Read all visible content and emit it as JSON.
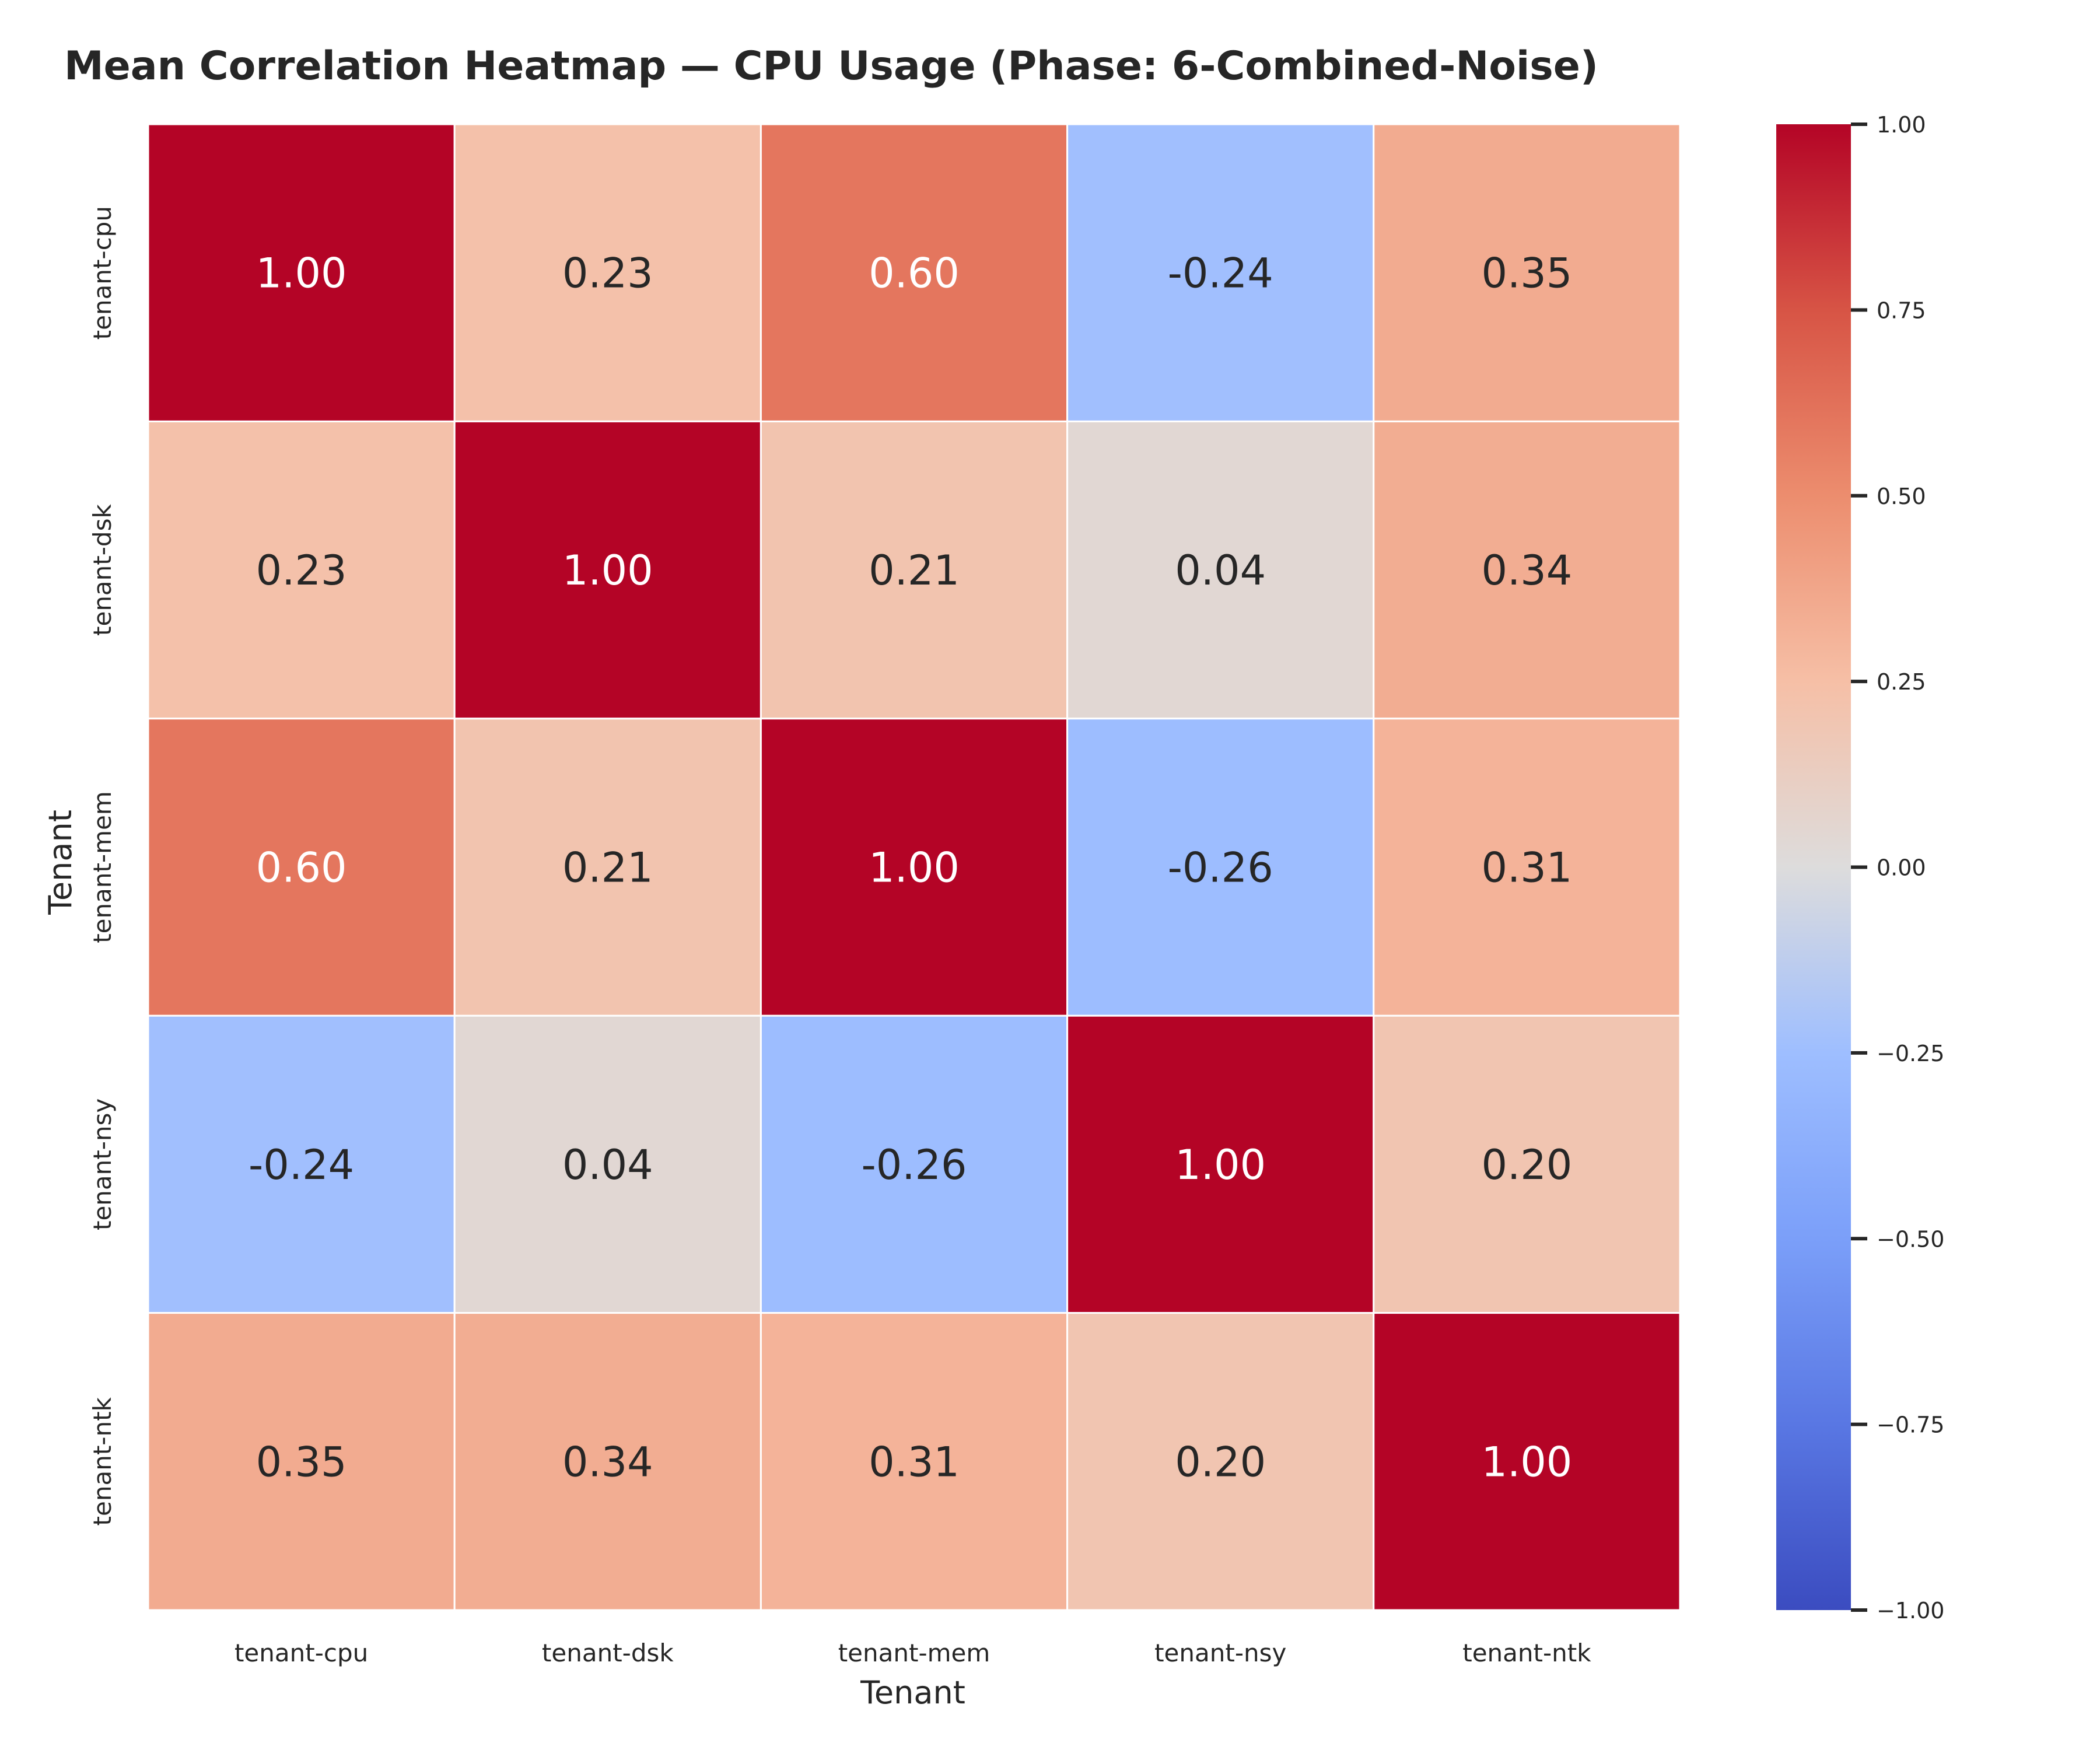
{
  "chart_data": {
    "type": "heatmap",
    "title": "Mean Correlation Heatmap — CPU Usage (Phase: 6-Combined-Noise)",
    "xlabel": "Tenant",
    "ylabel": "Tenant",
    "x_categories": [
      "tenant-cpu",
      "tenant-dsk",
      "tenant-mem",
      "tenant-nsy",
      "tenant-ntk"
    ],
    "y_categories": [
      "tenant-cpu",
      "tenant-dsk",
      "tenant-mem",
      "tenant-nsy",
      "tenant-ntk"
    ],
    "values": [
      [
        1.0,
        0.23,
        0.6,
        -0.24,
        0.35
      ],
      [
        0.23,
        1.0,
        0.21,
        0.04,
        0.34
      ],
      [
        0.6,
        0.21,
        1.0,
        -0.26,
        0.31
      ],
      [
        -0.24,
        0.04,
        -0.26,
        1.0,
        0.2
      ],
      [
        0.35,
        0.34,
        0.31,
        0.2,
        1.0
      ]
    ],
    "value_format": "0.00",
    "colormap": "coolwarm",
    "vmin": -1.0,
    "vmax": 1.0,
    "colorbar": {
      "ticks": [
        1.0,
        0.75,
        0.5,
        0.25,
        0.0,
        -0.25,
        -0.5,
        -0.75,
        -1.0
      ],
      "tick_labels": [
        "1.00",
        "0.75",
        "0.50",
        "0.25",
        "0.00",
        "−0.25",
        "−0.50",
        "−0.75",
        "−1.00"
      ],
      "placement": "right"
    },
    "grid": false,
    "cell_border_color": "#ffffff"
  }
}
